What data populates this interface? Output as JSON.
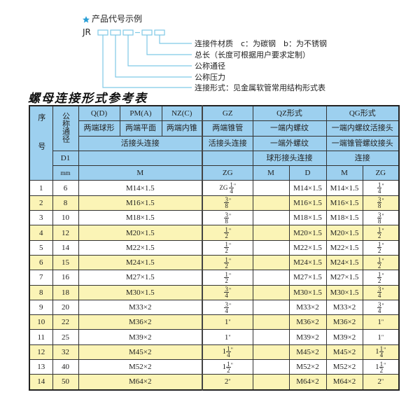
{
  "code_example": {
    "star_color": "#2a9fd6",
    "heading": "产品代号示例",
    "prefix": "JR",
    "dash": "-",
    "labels": [
      "连接件材质　c：为碳钢　b：为不锈钢",
      "总长（长度可根据用户要求定制）",
      "公称通径",
      "公称压力",
      "连接形式：见金属软管常用结构形式表"
    ]
  },
  "table_title": "螺母连接形式参考表",
  "colors": {
    "header_bg": "#9dd0ef",
    "row_alt_bg": "#fbf4b6",
    "line": "#7fc9e6"
  },
  "header": {
    "seq": "序号",
    "nominal": "公称通径",
    "qd": "Q(D)",
    "pm": "PM(A)",
    "nz": "NZ(C)",
    "gz": "GZ",
    "qz": "QZ形式",
    "qg": "QG形式",
    "qd_desc": "两端球形",
    "pm_desc": "两端平面",
    "nz_desc": "两端内锥",
    "gz_desc": "两端锥管",
    "qz_desc1": "一端内螺纹",
    "qg_desc1": "一端内螺纹活接头",
    "union": "活接头连接",
    "gz_union": "活接头连接",
    "qz_desc2": "一端外螺纹",
    "qg_desc2": "一端锥管螺纹接头",
    "d1": "D1",
    "qz_desc3": "球形接头连接",
    "qg_desc3": "连接",
    "mm": "mm",
    "m": "M",
    "zg": "ZG",
    "qz_m": "M",
    "qz_d": "D",
    "qg_m": "M",
    "qg_zg": "ZG"
  },
  "rows": [
    {
      "no": "1",
      "dn": "6",
      "m": "M14×1.5",
      "zg": {
        "pre": "ZG",
        "whole": "",
        "num": "1",
        "den": "4",
        "unit": "\""
      },
      "qz_m": "",
      "qz_d": "M14×1.5",
      "qg_m": "M14×1.5",
      "qg_zg": {
        "pre": "",
        "whole": "",
        "num": "1",
        "den": "4",
        "unit": "\""
      }
    },
    {
      "no": "2",
      "dn": "8",
      "m": "M16×1.5",
      "zg": {
        "pre": "",
        "whole": "",
        "num": "3",
        "den": "8",
        "unit": "\""
      },
      "qz_m": "",
      "qz_d": "M16×1.5",
      "qg_m": "M16×1.5",
      "qg_zg": {
        "pre": "",
        "whole": "",
        "num": "3",
        "den": "8",
        "unit": "\""
      }
    },
    {
      "no": "3",
      "dn": "10",
      "m": "M18×1.5",
      "zg": {
        "pre": "",
        "whole": "",
        "num": "3",
        "den": "8",
        "unit": "\""
      },
      "qz_m": "",
      "qz_d": "M18×1.5",
      "qg_m": "M18×1.5",
      "qg_zg": {
        "pre": "",
        "whole": "",
        "num": "3",
        "den": "8",
        "unit": "\""
      }
    },
    {
      "no": "4",
      "dn": "12",
      "m": "M20×1.5",
      "zg": {
        "pre": "",
        "whole": "",
        "num": "1",
        "den": "2",
        "unit": "\""
      },
      "qz_m": "",
      "qz_d": "M20×1.5",
      "qg_m": "M20×1.5",
      "qg_zg": {
        "pre": "",
        "whole": "",
        "num": "1",
        "den": "2",
        "unit": "\""
      }
    },
    {
      "no": "5",
      "dn": "14",
      "m": "M22×1.5",
      "zg": {
        "pre": "",
        "whole": "",
        "num": "1",
        "den": "2",
        "unit": "\""
      },
      "qz_m": "",
      "qz_d": "M22×1.5",
      "qg_m": "M22×1.5",
      "qg_zg": {
        "pre": "",
        "whole": "",
        "num": "1",
        "den": "2",
        "unit": "\""
      }
    },
    {
      "no": "6",
      "dn": "15",
      "m": "M24×1.5",
      "zg": {
        "pre": "",
        "whole": "",
        "num": "1",
        "den": "2",
        "unit": "\""
      },
      "qz_m": "",
      "qz_d": "M24×1.5",
      "qg_m": "M24×1.5",
      "qg_zg": {
        "pre": "",
        "whole": "",
        "num": "1",
        "den": "2",
        "unit": "\""
      }
    },
    {
      "no": "7",
      "dn": "16",
      "m": "M27×1.5",
      "zg": {
        "pre": "",
        "whole": "",
        "num": "1",
        "den": "2",
        "unit": "\""
      },
      "qz_m": "",
      "qz_d": "M27×1.5",
      "qg_m": "M27×1.5",
      "qg_zg": {
        "pre": "",
        "whole": "",
        "num": "1",
        "den": "2",
        "unit": "\""
      }
    },
    {
      "no": "8",
      "dn": "18",
      "m": "M30×1.5",
      "zg": {
        "pre": "",
        "whole": "",
        "num": "3",
        "den": "4",
        "unit": "\""
      },
      "qz_m": "",
      "qz_d": "M30×1.5",
      "qg_m": "M30×1.5",
      "qg_zg": {
        "pre": "",
        "whole": "",
        "num": "3",
        "den": "4",
        "unit": "\""
      }
    },
    {
      "no": "9",
      "dn": "20",
      "m": "M33×2",
      "zg": {
        "pre": "",
        "whole": "",
        "num": "3",
        "den": "4",
        "unit": "\""
      },
      "qz_m": "",
      "qz_d": "M33×2",
      "qg_m": "M33×2",
      "qg_zg": {
        "pre": "",
        "whole": "",
        "num": "3",
        "den": "4",
        "unit": "\""
      }
    },
    {
      "no": "10",
      "dn": "22",
      "m": "M36×2",
      "zg": {
        "pre": "",
        "whole": "1",
        "num": "",
        "den": "",
        "unit": "\""
      },
      "qz_m": "",
      "qz_d": "M36×2",
      "qg_m": "M36×2",
      "qg_zg": {
        "pre": "",
        "whole": "1",
        "num": "",
        "den": "",
        "unit": "\""
      }
    },
    {
      "no": "11",
      "dn": "25",
      "m": "M39×2",
      "zg": {
        "pre": "",
        "whole": "1",
        "num": "",
        "den": "",
        "unit": "\""
      },
      "qz_m": "",
      "qz_d": "M39×2",
      "qg_m": "M39×2",
      "qg_zg": {
        "pre": "",
        "whole": "1",
        "num": "",
        "den": "",
        "unit": "\""
      }
    },
    {
      "no": "12",
      "dn": "32",
      "m": "M45×2",
      "zg": {
        "pre": "",
        "whole": "1",
        "num": "1",
        "den": "4",
        "unit": "\""
      },
      "qz_m": "",
      "qz_d": "M45×2",
      "qg_m": "M45×2",
      "qg_zg": {
        "pre": "",
        "whole": "1",
        "num": "1",
        "den": "4",
        "unit": "\""
      }
    },
    {
      "no": "13",
      "dn": "40",
      "m": "M52×2",
      "zg": {
        "pre": "",
        "whole": "1",
        "num": "1",
        "den": "2",
        "unit": "\""
      },
      "qz_m": "",
      "qz_d": "M52×2",
      "qg_m": "M52×2",
      "qg_zg": {
        "pre": "",
        "whole": "1",
        "num": "1",
        "den": "2",
        "unit": "\""
      }
    },
    {
      "no": "14",
      "dn": "50",
      "m": "M64×2",
      "zg": {
        "pre": "",
        "whole": "2",
        "num": "",
        "den": "",
        "unit": "\""
      },
      "qz_m": "",
      "qz_d": "M64×2",
      "qg_m": "M64×2",
      "qg_zg": {
        "pre": "",
        "whole": "2",
        "num": "",
        "den": "",
        "unit": "\""
      }
    }
  ]
}
